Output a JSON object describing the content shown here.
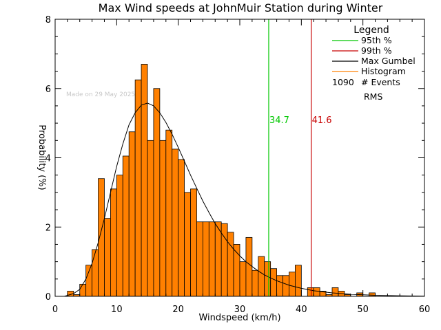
{
  "chart_data": {
    "type": "bar",
    "title": "Max Wind speeds at JohnMuir Station during Winter",
    "xlabel": "Windspeed (km/h)",
    "ylabel": "Probability (%)",
    "xlim": [
      0,
      60
    ],
    "ylim": [
      0,
      8
    ],
    "xticks": [
      "0",
      "10",
      "20",
      "30",
      "40",
      "50",
      "60"
    ],
    "yticks": [
      "0",
      "2",
      "4",
      "6",
      "8"
    ],
    "bin_width": 1,
    "bins": [
      {
        "x": 2,
        "y": 0.15
      },
      {
        "x": 3,
        "y": 0.05
      },
      {
        "x": 4,
        "y": 0.35
      },
      {
        "x": 5,
        "y": 0.9
      },
      {
        "x": 6,
        "y": 1.35
      },
      {
        "x": 7,
        "y": 3.4
      },
      {
        "x": 8,
        "y": 2.25
      },
      {
        "x": 9,
        "y": 3.1
      },
      {
        "x": 10,
        "y": 3.5
      },
      {
        "x": 11,
        "y": 4.05
      },
      {
        "x": 12,
        "y": 4.75
      },
      {
        "x": 13,
        "y": 6.25
      },
      {
        "x": 14,
        "y": 6.7
      },
      {
        "x": 15,
        "y": 4.5
      },
      {
        "x": 16,
        "y": 6.0
      },
      {
        "x": 17,
        "y": 4.5
      },
      {
        "x": 18,
        "y": 4.8
      },
      {
        "x": 19,
        "y": 4.25
      },
      {
        "x": 20,
        "y": 3.95
      },
      {
        "x": 21,
        "y": 3.0
      },
      {
        "x": 22,
        "y": 3.1
      },
      {
        "x": 23,
        "y": 2.15
      },
      {
        "x": 24,
        "y": 2.15
      },
      {
        "x": 25,
        "y": 2.15
      },
      {
        "x": 26,
        "y": 2.15
      },
      {
        "x": 27,
        "y": 2.1
      },
      {
        "x": 28,
        "y": 1.85
      },
      {
        "x": 29,
        "y": 1.5
      },
      {
        "x": 30,
        "y": 1.0
      },
      {
        "x": 31,
        "y": 1.7
      },
      {
        "x": 32,
        "y": 0.75
      },
      {
        "x": 33,
        "y": 1.15
      },
      {
        "x": 34,
        "y": 1.0
      },
      {
        "x": 35,
        "y": 0.8
      },
      {
        "x": 36,
        "y": 0.6
      },
      {
        "x": 37,
        "y": 0.6
      },
      {
        "x": 38,
        "y": 0.7
      },
      {
        "x": 39,
        "y": 0.9
      },
      {
        "x": 40,
        "y": 0.0
      },
      {
        "x": 41,
        "y": 0.25
      },
      {
        "x": 42,
        "y": 0.25
      },
      {
        "x": 43,
        "y": 0.15
      },
      {
        "x": 44,
        "y": 0.05
      },
      {
        "x": 45,
        "y": 0.25
      },
      {
        "x": 46,
        "y": 0.15
      },
      {
        "x": 47,
        "y": 0.05
      },
      {
        "x": 48,
        "y": 0.0
      },
      {
        "x": 49,
        "y": 0.1
      },
      {
        "x": 50,
        "y": 0.0
      },
      {
        "x": 51,
        "y": 0.1
      },
      {
        "x": 52,
        "y": 0.0
      }
    ],
    "gumbel_fit": [
      [
        1.5,
        0.0
      ],
      [
        3,
        0.08
      ],
      [
        4,
        0.2
      ],
      [
        5,
        0.5
      ],
      [
        6,
        0.95
      ],
      [
        7,
        1.55
      ],
      [
        8,
        2.25
      ],
      [
        9,
        3.0
      ],
      [
        10,
        3.75
      ],
      [
        11,
        4.4
      ],
      [
        12,
        4.95
      ],
      [
        13,
        5.3
      ],
      [
        14,
        5.52
      ],
      [
        15,
        5.58
      ],
      [
        16,
        5.5
      ],
      [
        17,
        5.3
      ],
      [
        18,
        5.02
      ],
      [
        19,
        4.68
      ],
      [
        20,
        4.3
      ],
      [
        21,
        3.9
      ],
      [
        22,
        3.5
      ],
      [
        23,
        3.12
      ],
      [
        24,
        2.75
      ],
      [
        25,
        2.42
      ],
      [
        26,
        2.1
      ],
      [
        27,
        1.83
      ],
      [
        28,
        1.58
      ],
      [
        29,
        1.36
      ],
      [
        30,
        1.17
      ],
      [
        31,
        1.0
      ],
      [
        32,
        0.86
      ],
      [
        33,
        0.73
      ],
      [
        34,
        0.62
      ],
      [
        35,
        0.53
      ],
      [
        36,
        0.45
      ],
      [
        38,
        0.32
      ],
      [
        40,
        0.23
      ],
      [
        42,
        0.16
      ],
      [
        45,
        0.1
      ],
      [
        48,
        0.06
      ],
      [
        52,
        0.03
      ],
      [
        56,
        0.015
      ],
      [
        60,
        0.005
      ]
    ],
    "percentile_95": {
      "value": 34.7,
      "label": "34.7",
      "color": "#00c800"
    },
    "percentile_99": {
      "value": 41.6,
      "label": "41.6",
      "color": "#c80000"
    },
    "legend": {
      "title": "Legend",
      "placement": "top-right",
      "items": [
        {
          "label": "95th %",
          "color": "#00c800"
        },
        {
          "label": "99th %",
          "color": "#c80000"
        },
        {
          "label": "Max Gumbel",
          "color": "#000000"
        },
        {
          "label": "Histogram",
          "color": "#ff8000"
        }
      ],
      "events_count": "1090",
      "events_label": "# Events",
      "rms_label": "RMS"
    },
    "watermark": "Made on 29 May 2025",
    "histogram_color": "#ff8000"
  }
}
